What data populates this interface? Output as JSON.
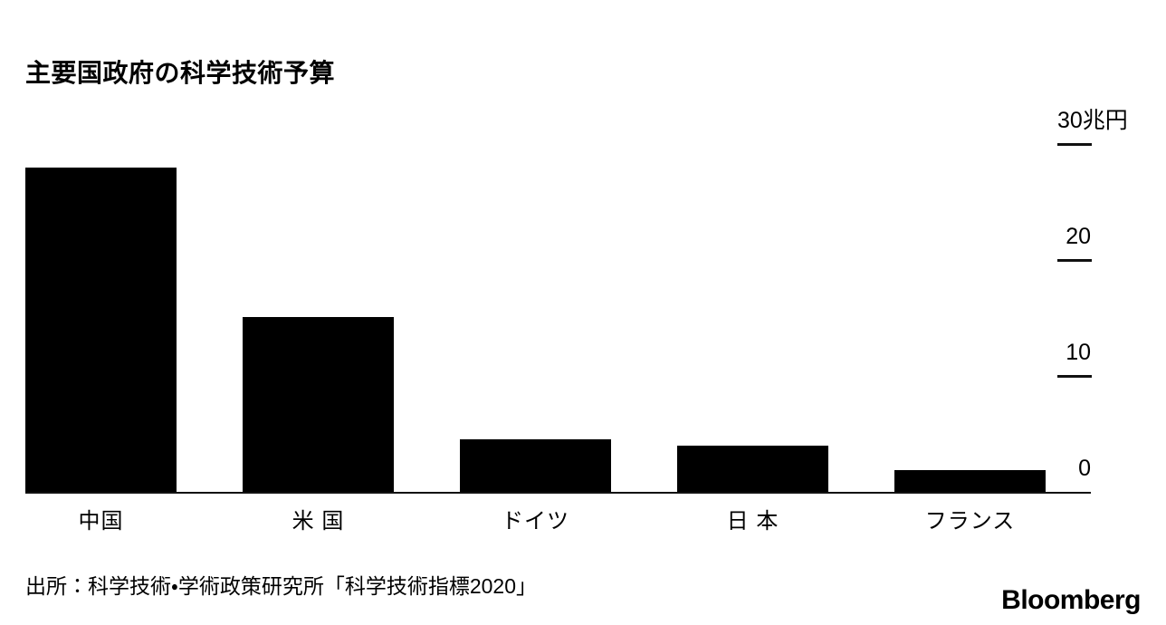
{
  "page": {
    "background_color": "#ffffff",
    "text_color": "#000000"
  },
  "header": {
    "title": "主要国政府の科学技術予算"
  },
  "chart_data": {
    "type": "bar",
    "title": "主要国政府の科学技術予算",
    "categories": [
      "中国",
      "米 国",
      "ドイツ",
      "日 本",
      "フランス"
    ],
    "values": [
      28.0,
      15.1,
      4.5,
      4.0,
      1.9
    ],
    "xlabel": "",
    "ylabel": "兆円",
    "ylim": [
      0,
      30
    ],
    "yticks": [
      {
        "value": 30,
        "label": "30兆円",
        "dash": true
      },
      {
        "value": 20,
        "label": "20",
        "dash": true
      },
      {
        "value": 10,
        "label": "10",
        "dash": true
      },
      {
        "value": 0,
        "label": "0",
        "dash": false
      }
    ],
    "bar_color": "#000000",
    "axis_color": "#111111",
    "grid": false,
    "legend": false,
    "tick_label_position": "right-above-dash"
  },
  "footer": {
    "source": "出所：科学技術・学術政策研究所「科学技術指標2020」",
    "brand": "Bloomberg"
  }
}
